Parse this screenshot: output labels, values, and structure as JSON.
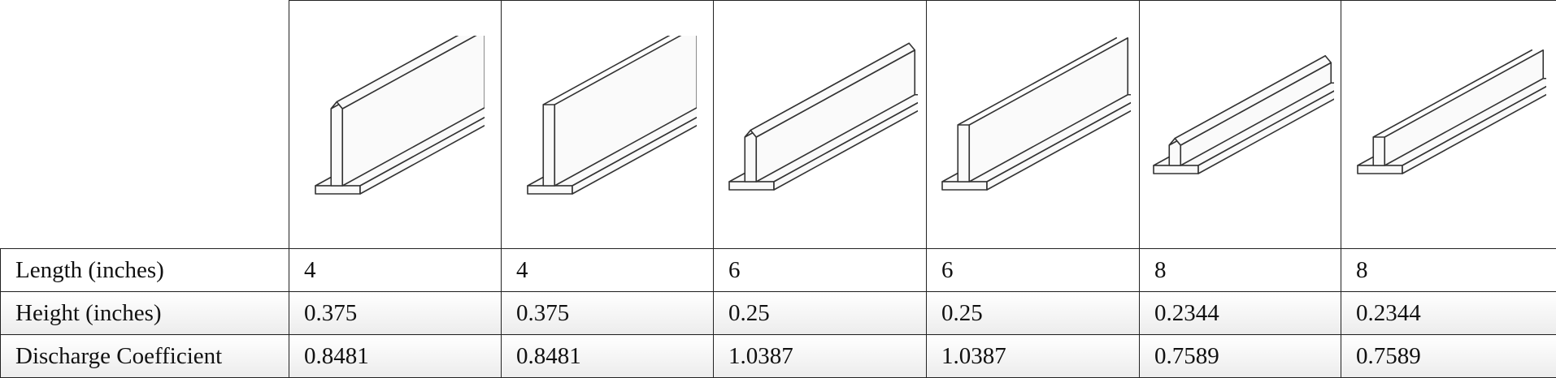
{
  "rows": [
    {
      "label": "Length (inches)",
      "values": [
        "4",
        "4",
        "6",
        "6",
        "8",
        "8"
      ]
    },
    {
      "label": "Height (inches)",
      "values": [
        "0.375",
        "0.375",
        "0.25",
        "0.25",
        "0.2344",
        "0.2344"
      ]
    },
    {
      "label": "Discharge Coefficient",
      "values": [
        "0.8481",
        "0.8481",
        "1.0387",
        "1.0387",
        "0.7589",
        "0.7589"
      ]
    }
  ],
  "images": [
    {
      "icon": "tall-beveled-crest-beam-icon"
    },
    {
      "icon": "tall-sharp-crest-beam-icon"
    },
    {
      "icon": "medium-beveled-crest-beam-icon"
    },
    {
      "icon": "medium-sharp-crest-beam-icon"
    },
    {
      "icon": "low-beveled-crest-beam-icon"
    },
    {
      "icon": "low-sharp-crest-beam-icon"
    }
  ],
  "colors": {
    "border": "#222222",
    "text": "#111111",
    "shade": "#ececec"
  }
}
